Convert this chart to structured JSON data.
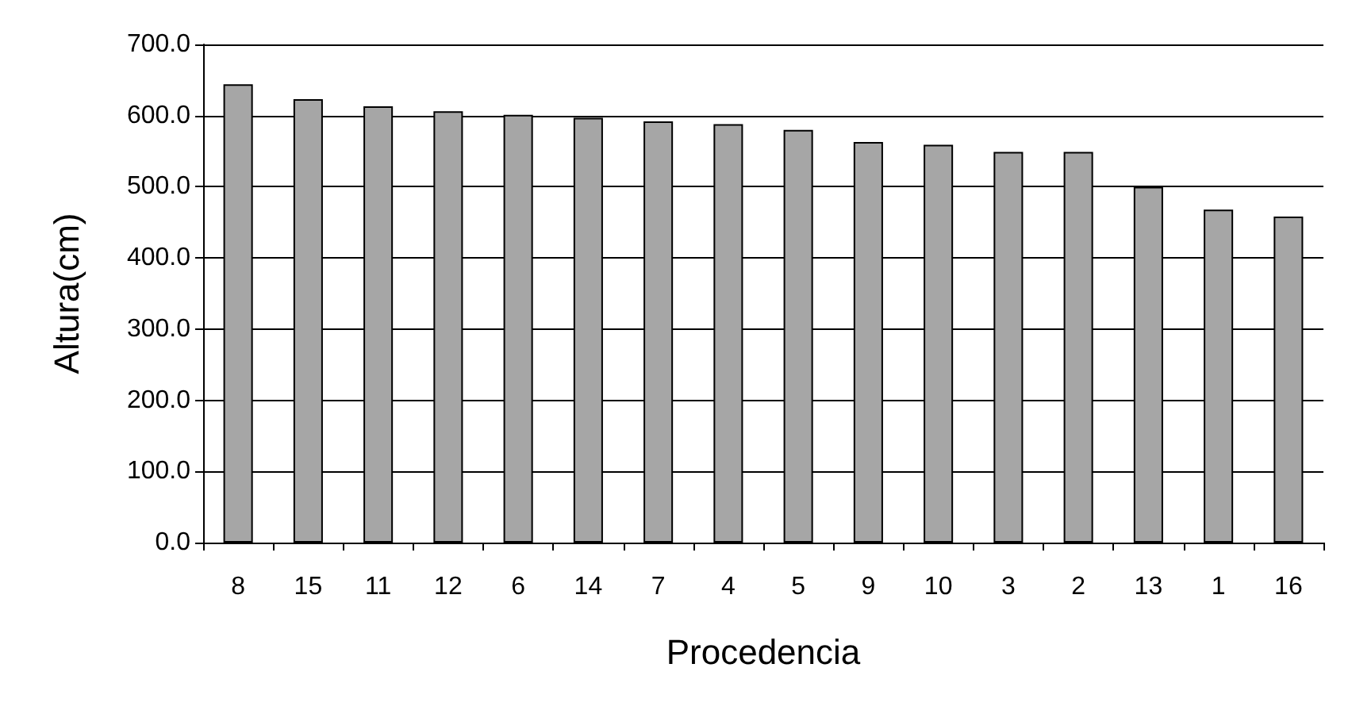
{
  "chart_data": {
    "type": "bar",
    "xlabel": "Procedencia",
    "ylabel": "Altura(cm)",
    "categories": [
      "8",
      "15",
      "11",
      "12",
      "6",
      "14",
      "7",
      "4",
      "5",
      "9",
      "10",
      "3",
      "2",
      "13",
      "1",
      "16"
    ],
    "values": [
      644,
      623,
      613,
      606,
      601,
      597,
      592,
      588,
      580,
      563,
      559,
      549,
      549,
      500,
      468,
      458
    ],
    "color": "#a6a6a6",
    "ylim": [
      0,
      700
    ],
    "yticks": [
      {
        "value": 0,
        "label": "0.0"
      },
      {
        "value": 100,
        "label": "100.0"
      },
      {
        "value": 200,
        "label": "200.0"
      },
      {
        "value": 300,
        "label": "300.0"
      },
      {
        "value": 400,
        "label": "400.0"
      },
      {
        "value": 500,
        "label": "500.0"
      },
      {
        "value": 600,
        "label": "600.0"
      },
      {
        "value": 700,
        "label": "700.0"
      }
    ],
    "grid": "y"
  }
}
